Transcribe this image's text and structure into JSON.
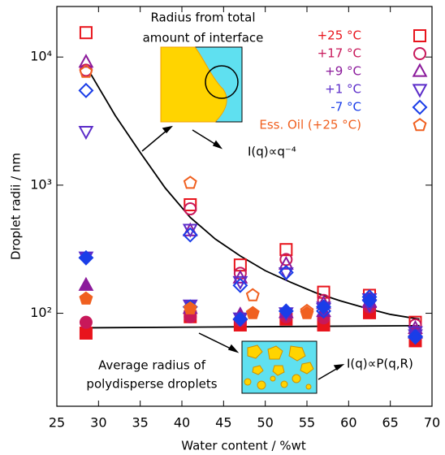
{
  "chart_data": {
    "type": "scatter",
    "x_label": "Water content / %wt",
    "y_label": "Droplet radii / nm",
    "xlim": [
      25,
      70
    ],
    "xticks": [
      25,
      30,
      35,
      40,
      45,
      50,
      55,
      60,
      65,
      70
    ],
    "ylim": [
      18.8,
      24800
    ],
    "yticks": [
      {
        "value": 100,
        "label": "10²"
      },
      {
        "value": 1000,
        "label": "10³"
      },
      {
        "value": 10000,
        "label": "10⁴"
      }
    ],
    "log_y": true,
    "legend": "upper right",
    "series": [
      {
        "name": "+25 °C",
        "color": "#e8141c",
        "marker": "square",
        "x": [
          28.5,
          41,
          47,
          52.5,
          57,
          62.5,
          68
        ],
        "values": [
          15500,
          703,
          238,
          314,
          146,
          138,
          85
        ],
        "filled_values": [
          70,
          94,
          81,
          90,
          81,
          101,
          61
        ]
      },
      {
        "name": "+17 °C",
        "color": "#c8185a",
        "marker": "circle",
        "x": [
          28.5,
          41,
          47,
          52.5,
          57,
          62.5,
          68
        ],
        "values": [
          7900,
          653,
          205,
          263,
          126,
          130,
          81
        ],
        "filled_values": [
          85,
          94,
          88,
          94,
          92,
          112,
          72
        ]
      },
      {
        "name": "+9 °C",
        "color": "#8b1a9b",
        "marker": "triangle-up",
        "x": [
          28.5,
          41,
          47,
          52.5,
          57,
          62.5,
          68
        ],
        "values": [
          9100,
          440,
          188,
          241,
          119,
          123,
          76
        ],
        "filled_values": [
          165,
          109,
          97,
          101,
          103,
          121,
          70
        ]
      },
      {
        "name": "+1 °C",
        "color": "#5b2cc9",
        "marker": "triangle-down",
        "x": [
          28.5,
          41,
          47,
          52.5,
          57,
          62.5,
          68
        ],
        "values": [
          2630,
          453,
          177,
          207,
          112,
          117,
          72
        ],
        "filled_values": [
          275,
          116,
          92,
          101,
          109,
          130,
          68
        ]
      },
      {
        "name": "-7 °C",
        "color": "#1a3de8",
        "marker": "diamond",
        "x": [
          28.5,
          41,
          47,
          52.5,
          57,
          62.5,
          68
        ],
        "values": [
          5480,
          409,
          165,
          208,
          104,
          134,
          66
        ],
        "filled_values": [
          271,
          112,
          90,
          104,
          112,
          126,
          65
        ]
      },
      {
        "name": "Ess. Oil (+25 °C)",
        "color": "#f06020",
        "marker": "pentagon",
        "x": [
          28.5,
          41,
          48.5,
          55
        ],
        "values": [
          7650,
          1040,
          138,
          104
        ],
        "filled_values": [
          130,
          109,
          100,
          100
        ]
      }
    ],
    "curves": [
      {
        "color": "#000000",
        "x": [
          29,
          32,
          35,
          38,
          41,
          44,
          47,
          50,
          53,
          56,
          59,
          62,
          65,
          68.5
        ],
        "values": [
          7500,
          3500,
          1800,
          950,
          560,
          380,
          280,
          215,
          175,
          145,
          125,
          110,
          98,
          90
        ]
      },
      {
        "color": "#000000",
        "x": [
          28.5,
          68.5
        ],
        "values": [
          77,
          80
        ]
      }
    ],
    "annotations": {
      "top_title": [
        "Radius from total",
        "amount of interface"
      ],
      "top_formula": "I(q)∝q⁻⁴",
      "bottom_title": [
        "Average radius of",
        "polydisperse droplets"
      ],
      "bottom_formula": "I(q)∝P(q,R)"
    }
  }
}
